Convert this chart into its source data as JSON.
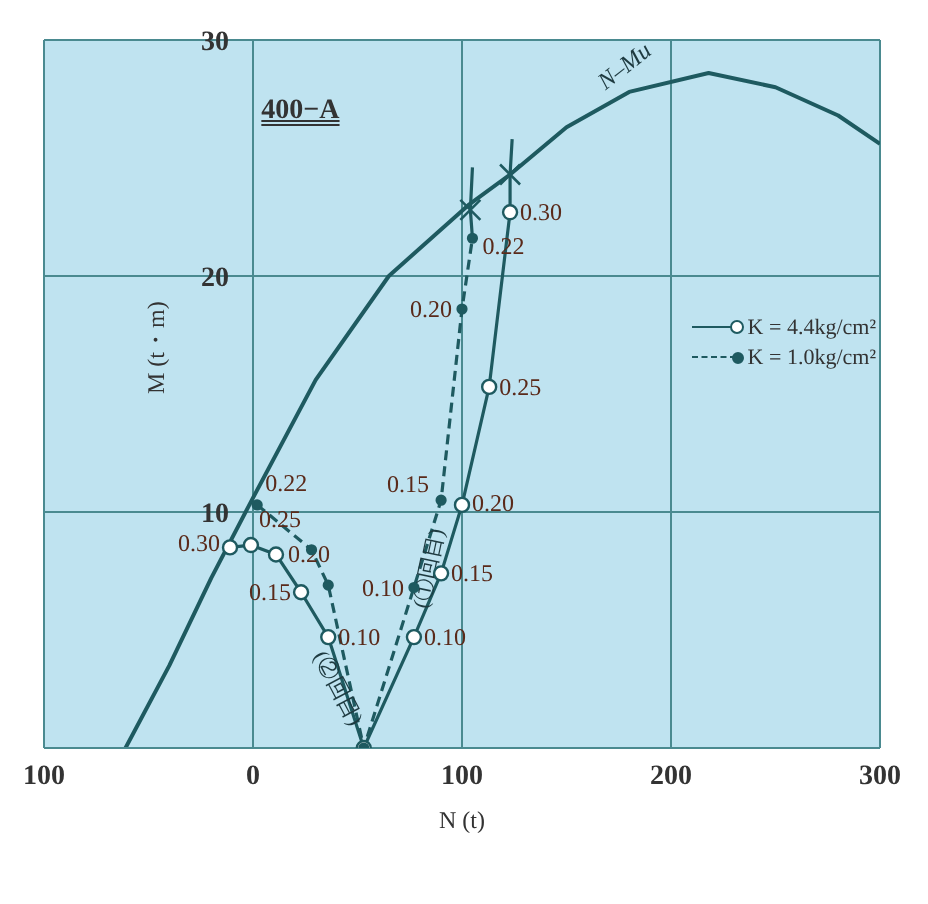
{
  "chart_data": {
    "type": "line",
    "title": "400−A",
    "xlabel": "N (t)",
    "ylabel": "M (t・m)",
    "xlim": [
      -100,
      300
    ],
    "xticks": [
      {
        "value": -100,
        "label": "100"
      },
      0,
      100,
      200,
      300
    ],
    "ylim": [
      0,
      30
    ],
    "yticks": [
      10,
      20,
      30
    ],
    "grid": true,
    "legend": "right",
    "marker": "circle",
    "annotations": [
      {
        "text": "0.30",
        "x": -11,
        "y": 8.5
      },
      {
        "text": "0.25",
        "x": -1,
        "y": 8.6
      },
      {
        "text": "0.20",
        "x": 11,
        "y": 8.2
      },
      {
        "text": "0.15",
        "x": 23,
        "y": 6.6
      },
      {
        "text": "0.10",
        "x": 36,
        "y": 4.7
      },
      {
        "text": "0.10",
        "x": 77,
        "y": 4.7
      },
      {
        "text": "0.15",
        "x": 90,
        "y": 7.4
      },
      {
        "text": "0.20",
        "x": 100,
        "y": 10.3
      },
      {
        "text": "0.25",
        "x": 113,
        "y": 15.3
      },
      {
        "text": "0.30",
        "x": 123,
        "y": 22.7
      },
      {
        "text": "0.22",
        "x": 2,
        "y": 10.3
      },
      {
        "text": "0.10",
        "x": 77,
        "y": 6.8
      },
      {
        "text": "0.15",
        "x": 90,
        "y": 10.5
      },
      {
        "text": "0.20",
        "x": 100,
        "y": 18.6
      },
      {
        "text": "0.22",
        "x": 105,
        "y": 21.6
      },
      {
        "text": "(②回目)",
        "x": 40,
        "y": 2.5
      },
      {
        "text": "(①回目)",
        "x": 85,
        "y": 7.6
      }
    ],
    "series": [
      {
        "name": "N–Mu",
        "color": "#1e5a60",
        "marker": "none",
        "line_style": "solid",
        "x": [
          -61,
          -40,
          -20,
          0,
          30,
          65,
          103,
          123,
          150,
          180,
          218,
          250,
          280,
          300
        ],
        "values": [
          0,
          3.5,
          7.2,
          10.6,
          15.6,
          20,
          23,
          24.3,
          26.3,
          27.8,
          28.6,
          28,
          26.8,
          25.6
        ]
      },
      {
        "name": "K = 4.4kg/cm²",
        "color": "#1e5a60",
        "line_style": "solid",
        "x": [
          -11,
          -1,
          11,
          23,
          36,
          53,
          77,
          90,
          100,
          113,
          123
        ],
        "values": [
          8.5,
          8.6,
          8.2,
          6.6,
          4.7,
          0,
          4.7,
          7.4,
          10.3,
          15.3,
          22.7
        ]
      },
      {
        "name": "K = 1.0kg/cm²",
        "color": "#1e5a60",
        "line_style": "dashed",
        "x": [
          2,
          28,
          36,
          53,
          77,
          90,
          100,
          105
        ],
        "values": [
          10.3,
          8.4,
          6.9,
          0,
          6.8,
          10.5,
          18.6,
          21.6
        ]
      },
      {
        "color": "#1e5a60",
        "marker": "none",
        "line_style": "solid",
        "x": [
          123,
          123,
          124
        ],
        "values": [
          22.7,
          24.3,
          25.8
        ]
      },
      {
        "color": "#1e5a60",
        "marker": "none",
        "line_style": "solid",
        "x": [
          105,
          104,
          105
        ],
        "values": [
          21.6,
          22.8,
          24.6
        ]
      },
      {
        "type": "scatter",
        "color": "#1e5a60",
        "marker": "cross",
        "x": [
          104,
          123
        ],
        "values": [
          22.8,
          24.3
        ]
      }
    ]
  }
}
